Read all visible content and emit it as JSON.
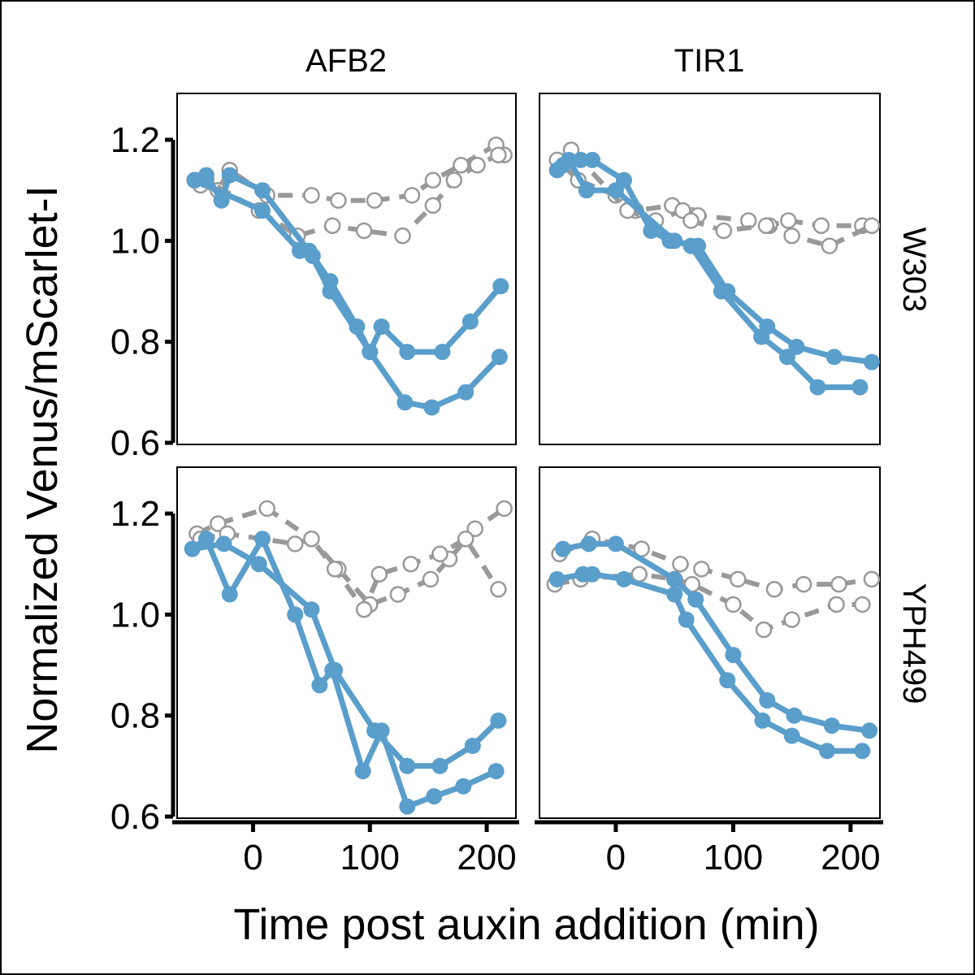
{
  "chart_data": {
    "type": "line",
    "xlabel": "Time post auxin addition (min)",
    "ylabel": "Normalized Venus/mScarlet-I",
    "xlim": [
      -65,
      225
    ],
    "ylim": [
      0.6,
      1.25
    ],
    "x_ticks": [
      0,
      100,
      200
    ],
    "x_tick_labels": [
      "0",
      "100",
      "200"
    ],
    "y_ticks": [
      0.6,
      0.8,
      1.0,
      1.2
    ],
    "y_tick_labels": [
      "0.6",
      "0.8",
      "1.0",
      "1.2"
    ],
    "column_labels": [
      "AFB2",
      "TIR1"
    ],
    "row_labels": [
      "W303",
      "YPH499"
    ],
    "colors": {
      "treated": "#5a9ecb",
      "control": "#999999",
      "frame": "#000000"
    },
    "panels": [
      {
        "column": "AFB2",
        "row": "W303",
        "series": [
          {
            "style": "treated",
            "x": [
              -50,
              -40,
              -27,
              -20,
              8,
              51,
              66,
              89,
              100,
              130,
              153,
              182,
              211
            ],
            "y": [
              1.12,
              1.13,
              1.08,
              1.13,
              1.1,
              0.97,
              0.92,
              0.83,
              0.78,
              0.68,
              0.67,
              0.7,
              0.77
            ]
          },
          {
            "style": "treated",
            "x": [
              -50,
              8,
              40,
              48,
              66,
              100,
              110,
              132,
              162,
              186,
              212
            ],
            "y": [
              1.12,
              1.06,
              0.98,
              0.98,
              0.9,
              0.78,
              0.83,
              0.78,
              0.78,
              0.84,
              0.91
            ]
          },
          {
            "style": "control",
            "x": [
              -45,
              -30,
              -20,
              12,
              50,
              73,
              104,
              136,
              154,
              178,
              208,
              215
            ],
            "y": [
              1.11,
              1.1,
              1.14,
              1.09,
              1.09,
              1.08,
              1.08,
              1.09,
              1.12,
              1.15,
              1.19,
              1.17
            ]
          },
          {
            "style": "control",
            "x": [
              -50,
              -40,
              5,
              38,
              68,
              95,
              128,
              154,
              172,
              192,
              210
            ],
            "y": [
              1.12,
              1.12,
              1.06,
              1.01,
              1.03,
              1.02,
              1.01,
              1.07,
              1.12,
              1.15,
              1.17
            ]
          }
        ]
      },
      {
        "column": "TIR1",
        "row": "W303",
        "series": [
          {
            "style": "treated",
            "x": [
              -50,
              -40,
              -25,
              0,
              50,
              64,
              90,
              124,
              146,
              172,
              208
            ],
            "y": [
              1.14,
              1.16,
              1.1,
              1.1,
              1.0,
              0.99,
              0.9,
              0.81,
              0.77,
              0.71,
              0.71
            ]
          },
          {
            "style": "treated",
            "x": [
              -45,
              -30,
              -20,
              7,
              30,
              46,
              70,
              95,
              129,
              154,
              186,
              218
            ],
            "y": [
              1.15,
              1.16,
              1.16,
              1.12,
              1.02,
              1.0,
              0.99,
              0.9,
              0.83,
              0.79,
              0.77,
              0.76
            ]
          },
          {
            "style": "control",
            "x": [
              -45,
              -32,
              0,
              17,
              48,
              65,
              70,
              113,
              131,
              147,
              175,
              210
            ],
            "y": [
              1.15,
              1.12,
              1.09,
              1.06,
              1.07,
              1.05,
              1.05,
              1.04,
              1.03,
              1.04,
              1.03,
              1.03
            ]
          },
          {
            "style": "control",
            "x": [
              -50,
              -38,
              10,
              34,
              57,
              64,
              92,
              128,
              150,
              182,
              218
            ],
            "y": [
              1.16,
              1.18,
              1.06,
              1.04,
              1.06,
              1.04,
              1.02,
              1.03,
              1.01,
              0.99,
              1.03
            ]
          }
        ]
      },
      {
        "column": "AFB2",
        "row": "YPH499",
        "series": [
          {
            "style": "treated",
            "x": [
              -52,
              -40,
              -20,
              8,
              36,
              57,
              68,
              94,
              110,
              132,
              155,
              180,
              208
            ],
            "y": [
              1.13,
              1.15,
              1.04,
              1.15,
              1.0,
              0.86,
              0.89,
              0.69,
              0.77,
              0.62,
              0.64,
              0.66,
              0.69
            ]
          },
          {
            "style": "treated",
            "x": [
              -52,
              -25,
              5,
              50,
              70,
              104,
              132,
              160,
              188,
              210
            ],
            "y": [
              1.13,
              1.14,
              1.1,
              1.01,
              0.89,
              0.77,
              0.7,
              0.7,
              0.74,
              0.79
            ]
          },
          {
            "style": "control",
            "x": [
              -48,
              -30,
              12,
              50,
              73,
              100,
              124,
              152,
              168,
              190,
              215
            ],
            "y": [
              1.16,
              1.18,
              1.21,
              1.15,
              1.09,
              1.02,
              1.04,
              1.07,
              1.11,
              1.17,
              1.21
            ]
          },
          {
            "style": "control",
            "x": [
              -45,
              -22,
              36,
              50,
              70,
              95,
              108,
              135,
              160,
              182,
              210
            ],
            "y": [
              1.15,
              1.16,
              1.14,
              1.15,
              1.09,
              1.01,
              1.08,
              1.1,
              1.12,
              1.15,
              1.05
            ]
          }
        ]
      },
      {
        "column": "TIR1",
        "row": "YPH499",
        "series": [
          {
            "style": "treated",
            "x": [
              -50,
              -28,
              -20,
              7,
              50,
              60,
              95,
              125,
              150,
              180,
              210
            ],
            "y": [
              1.07,
              1.08,
              1.08,
              1.07,
              1.04,
              0.99,
              0.87,
              0.79,
              0.76,
              0.73,
              0.73
            ]
          },
          {
            "style": "treated",
            "x": [
              -45,
              -23,
              0,
              50,
              68,
              100,
              129,
              152,
              184,
              216
            ],
            "y": [
              1.13,
              1.14,
              1.14,
              1.07,
              1.03,
              0.92,
              0.83,
              0.8,
              0.78,
              0.77
            ]
          },
          {
            "style": "control",
            "x": [
              -48,
              -20,
              22,
              55,
              73,
              104,
              135,
              160,
              190,
              218
            ],
            "y": [
              1.12,
              1.15,
              1.13,
              1.1,
              1.09,
              1.07,
              1.05,
              1.06,
              1.06,
              1.07
            ]
          },
          {
            "style": "control",
            "x": [
              -52,
              -30,
              20,
              50,
              65,
              100,
              126,
              150,
              188,
              210
            ],
            "y": [
              1.06,
              1.07,
              1.08,
              1.07,
              1.06,
              1.02,
              0.97,
              0.99,
              1.02,
              1.02
            ]
          }
        ]
      }
    ]
  }
}
